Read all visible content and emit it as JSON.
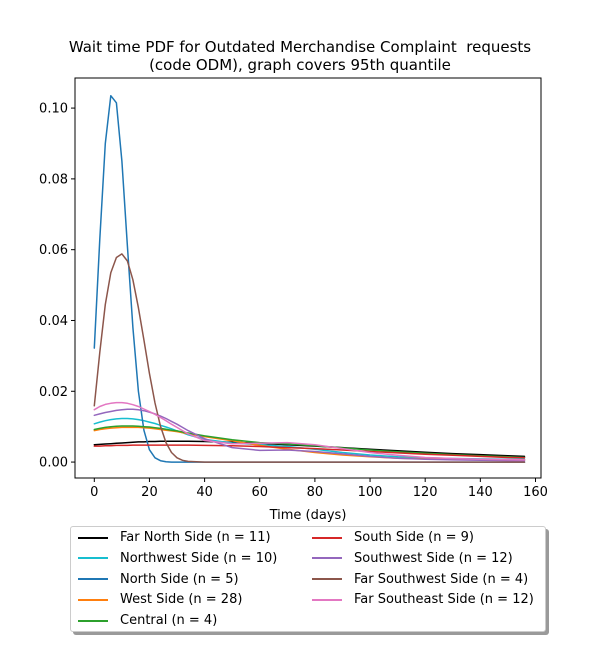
{
  "chart_data": {
    "type": "line",
    "title_lines": [
      "Wait time PDF for Outdated Merchandise Complaint  requests",
      "(code ODM), graph covers 95th quantile"
    ],
    "xlabel": "Time (days)",
    "ylabel": "",
    "xlim": [
      -7,
      162
    ],
    "ylim": [
      -0.0045,
      0.1085
    ],
    "x_ticks": [
      0,
      20,
      40,
      60,
      80,
      100,
      120,
      140,
      160
    ],
    "y_ticks": [
      0.0,
      0.02,
      0.04,
      0.06,
      0.08,
      0.1
    ],
    "y_tick_labels": [
      "0.00",
      "0.02",
      "0.04",
      "0.06",
      "0.08",
      "0.10"
    ],
    "grid": false,
    "legend_position": "below",
    "x": [
      0,
      2,
      4,
      6,
      8,
      10,
      12,
      14,
      16,
      18,
      20,
      22,
      24,
      26,
      28,
      30,
      32,
      34,
      40,
      50,
      60,
      70,
      80,
      90,
      100,
      110,
      120,
      130,
      140,
      150,
      156
    ],
    "series": [
      {
        "name": "Far North Side (n = 11)",
        "color": "#000000",
        "values": [
          0.0049,
          0.005,
          0.0051,
          0.0052,
          0.0053,
          0.0054,
          0.0055,
          0.0056,
          0.0057,
          0.0057,
          0.0058,
          0.0058,
          0.0059,
          0.0059,
          0.0059,
          0.0059,
          0.0059,
          0.0059,
          0.0058,
          0.0056,
          0.0053,
          0.0049,
          0.0045,
          0.0041,
          0.0036,
          0.0032,
          0.0028,
          0.0024,
          0.0021,
          0.0018,
          0.0016
        ]
      },
      {
        "name": "Northwest Side (n = 10)",
        "color": "#17becf",
        "values": [
          0.0108,
          0.0113,
          0.0117,
          0.012,
          0.0122,
          0.0123,
          0.0123,
          0.0122,
          0.012,
          0.0117,
          0.0113,
          0.0109,
          0.0104,
          0.0099,
          0.0094,
          0.0088,
          0.0083,
          0.0077,
          0.0064,
          0.0054,
          0.0049,
          0.0044,
          0.0036,
          0.0027,
          0.002,
          0.0015,
          0.0012,
          0.001,
          0.0009,
          0.0008,
          0.0008
        ]
      },
      {
        "name": "North Side (n = 5)",
        "color": "#1f77b4",
        "values": [
          0.0322,
          0.063,
          0.09,
          0.1035,
          0.1015,
          0.085,
          0.061,
          0.038,
          0.02,
          0.009,
          0.0035,
          0.0012,
          0.0004,
          0.0001,
          0.0,
          0.0,
          0.0,
          0.0,
          0.0,
          0.0,
          0.0,
          0.0,
          0.0,
          0.0,
          0.0,
          0.0,
          0.0,
          0.0,
          0.0,
          0.0,
          0.0
        ]
      },
      {
        "name": "West Side (n = 28)",
        "color": "#ff7f0e",
        "values": [
          0.0089,
          0.0092,
          0.0094,
          0.0096,
          0.0097,
          0.0098,
          0.0098,
          0.0098,
          0.0098,
          0.0097,
          0.0096,
          0.0094,
          0.0092,
          0.009,
          0.0088,
          0.0086,
          0.0083,
          0.008,
          0.0072,
          0.006,
          0.0047,
          0.0036,
          0.0027,
          0.002,
          0.0015,
          0.0011,
          0.0009,
          0.0008,
          0.0007,
          0.0006,
          0.0006
        ]
      },
      {
        "name": "Central (n = 4)",
        "color": "#2ca02c",
        "values": [
          0.0092,
          0.0095,
          0.0098,
          0.01,
          0.0101,
          0.0102,
          0.0102,
          0.0102,
          0.0101,
          0.01,
          0.0099,
          0.0097,
          0.0095,
          0.0093,
          0.009,
          0.0088,
          0.0085,
          0.0082,
          0.0074,
          0.0063,
          0.0055,
          0.0051,
          0.0046,
          0.004,
          0.0034,
          0.0029,
          0.0025,
          0.0021,
          0.0018,
          0.0015,
          0.0013
        ]
      },
      {
        "name": "South Side (n = 9)",
        "color": "#d62728",
        "values": [
          0.0045,
          0.0045,
          0.0046,
          0.0046,
          0.0047,
          0.0047,
          0.0047,
          0.0048,
          0.0048,
          0.0048,
          0.0048,
          0.0048,
          0.0048,
          0.0048,
          0.0048,
          0.0048,
          0.0048,
          0.0048,
          0.0047,
          0.0046,
          0.0044,
          0.0041,
          0.0038,
          0.0034,
          0.003,
          0.0026,
          0.0022,
          0.0019,
          0.0016,
          0.0013,
          0.0012
        ]
      },
      {
        "name": "Southwest Side (n = 12)",
        "color": "#9467bd",
        "values": [
          0.0132,
          0.0136,
          0.014,
          0.0143,
          0.0146,
          0.0148,
          0.0149,
          0.0149,
          0.0148,
          0.0145,
          0.0141,
          0.0136,
          0.013,
          0.0123,
          0.0115,
          0.0107,
          0.0098,
          0.0089,
          0.0066,
          0.0041,
          0.0033,
          0.0034,
          0.003,
          0.0023,
          0.0016,
          0.0011,
          0.0008,
          0.0006,
          0.0005,
          0.0004,
          0.0004
        ]
      },
      {
        "name": "Far Southwest Side (n = 4)",
        "color": "#8c564b",
        "values": [
          0.0159,
          0.031,
          0.0445,
          0.0535,
          0.0578,
          0.0588,
          0.0568,
          0.0515,
          0.0436,
          0.0345,
          0.0251,
          0.0167,
          0.0101,
          0.0055,
          0.0027,
          0.0012,
          0.0005,
          0.0002,
          0.0,
          0.0,
          0.0,
          0.0,
          0.0,
          0.0,
          0.0,
          0.0,
          0.0,
          0.0,
          0.0,
          0.0,
          0.0
        ]
      },
      {
        "name": "Far Southeast Side (n = 12)",
        "color": "#e377c2",
        "values": [
          0.0148,
          0.0157,
          0.0163,
          0.0166,
          0.0168,
          0.0168,
          0.0166,
          0.0162,
          0.0157,
          0.015,
          0.0143,
          0.0135,
          0.0126,
          0.0117,
          0.0107,
          0.0098,
          0.0089,
          0.008,
          0.0061,
          0.0052,
          0.0053,
          0.0055,
          0.0049,
          0.0038,
          0.0027,
          0.0019,
          0.0013,
          0.001,
          0.0008,
          0.0007,
          0.0006
        ]
      }
    ]
  }
}
